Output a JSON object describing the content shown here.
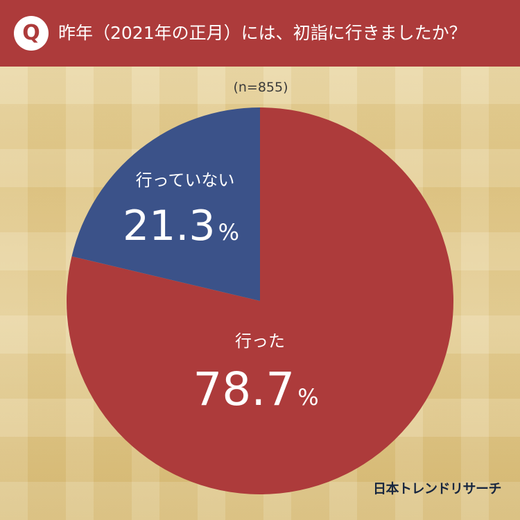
{
  "header": {
    "badge_letter": "Q",
    "question": "昨年（2021年の正月）には、初詣に行きましたか？"
  },
  "chart_data": {
    "type": "pie",
    "sample_label": "(n=855)",
    "slices": [
      {
        "label": "行った",
        "value": 78.7,
        "display": "78.7",
        "unit": "%",
        "color": "#ad3b3b"
      },
      {
        "label": "行っていない",
        "value": 21.3,
        "display": "21.3",
        "unit": "%",
        "color": "#3b5289"
      }
    ]
  },
  "brand": "日本トレンドリサーチ"
}
